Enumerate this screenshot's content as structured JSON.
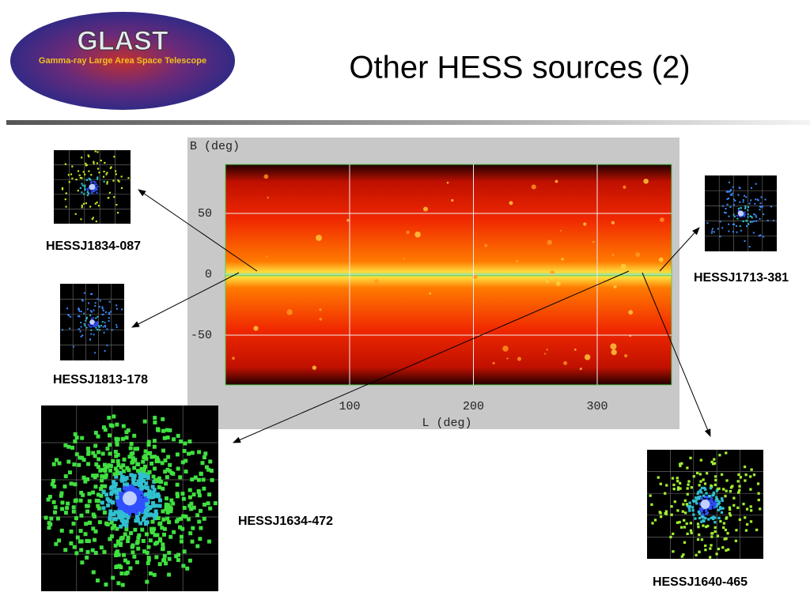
{
  "header": {
    "title": "Other HESS sources (2)",
    "logo_title": "GLAST",
    "logo_subtitle": "Gamma-ray Large Area Space Telescope"
  },
  "skymap": {
    "y_label": "B (deg)",
    "x_label": "L (deg)",
    "yticks": [
      50,
      0,
      -50
    ],
    "xticks": [
      100,
      200,
      300
    ]
  },
  "sources": [
    {
      "label": "HESSJ1834-087"
    },
    {
      "label": "HESSJ1813-178"
    },
    {
      "label": "HESSJ1713-381"
    },
    {
      "label": "HESSJ1634-472"
    },
    {
      "label": "HESSJ1640-465"
    }
  ]
}
